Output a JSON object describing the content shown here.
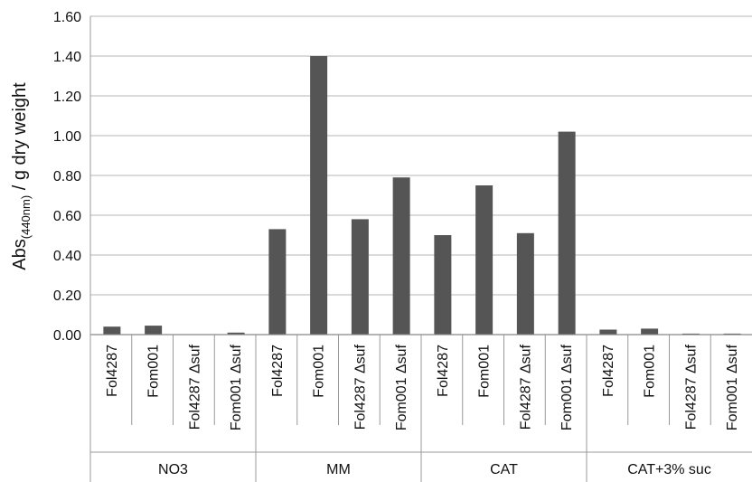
{
  "chart_data": {
    "type": "bar",
    "ylabel_main": "Abs",
    "ylabel_sub": "(440nm)",
    "ylabel_rest": " / g dry weight",
    "ylim": [
      0,
      1.6
    ],
    "yticks": [
      "0.00",
      "0.20",
      "0.40",
      "0.60",
      "0.80",
      "1.00",
      "1.20",
      "1.40",
      "1.60"
    ],
    "grid": true,
    "legend": "none",
    "bar_color": "#555555",
    "groups": [
      {
        "name": "NO3",
        "categories": [
          "Fol4287",
          "Fom001",
          "Fol4287 Δsuf",
          "Fom001 Δsuf"
        ],
        "values": [
          0.04,
          0.045,
          0.0,
          0.01
        ]
      },
      {
        "name": "MM",
        "categories": [
          "Fol4287",
          "Fom001",
          "Fol4287 Δsuf",
          "Fom001 Δsuf"
        ],
        "values": [
          0.53,
          1.4,
          0.58,
          0.79
        ]
      },
      {
        "name": "CAT",
        "categories": [
          "Fol4287",
          "Fom001",
          "Fol4287 Δsuf",
          "Fom001 Δsuf"
        ],
        "values": [
          0.5,
          0.75,
          0.51,
          1.02
        ]
      },
      {
        "name": "CAT+3% suc",
        "categories": [
          "Fol4287",
          "Fom001",
          "Fol4287 Δsuf",
          "Fom001 Δsuf"
        ],
        "values": [
          0.025,
          0.03,
          0.005,
          0.005
        ]
      }
    ]
  }
}
